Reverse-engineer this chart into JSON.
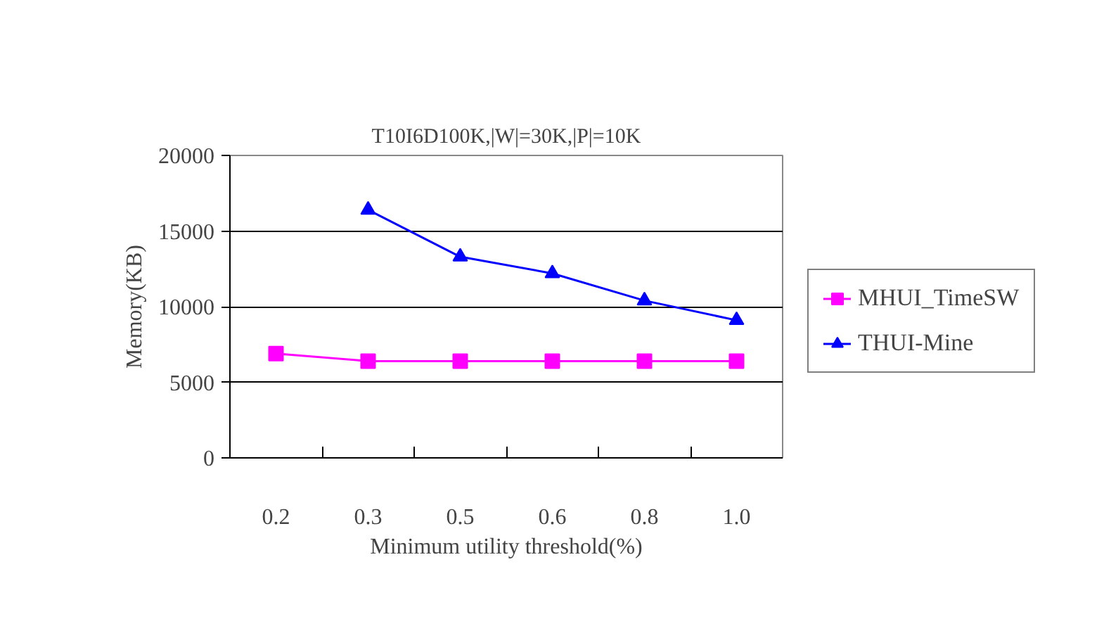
{
  "chart_data": {
    "type": "line",
    "title": "T10I6D100K,|W|=30K,|P|=10K",
    "xlabel": "Minimum utility threshold(%)",
    "ylabel": "Memory(KB)",
    "categories": [
      "0.2",
      "0.3",
      "0.5",
      "0.6",
      "0.8",
      "1.0"
    ],
    "series": [
      {
        "name": "MHUI_TimeSW",
        "color": "#ff00ff",
        "marker": "square",
        "values": [
          6900,
          6400,
          6400,
          6400,
          6400,
          6400
        ]
      },
      {
        "name": "THUI-Mine",
        "color": "#0000ff",
        "marker": "triangle",
        "values": [
          null,
          16400,
          13300,
          12200,
          10400,
          9100
        ]
      }
    ],
    "ylim": [
      0,
      20000
    ],
    "yticks": [
      0,
      5000,
      10000,
      15000,
      20000
    ],
    "grid": "y",
    "legend": "right"
  }
}
